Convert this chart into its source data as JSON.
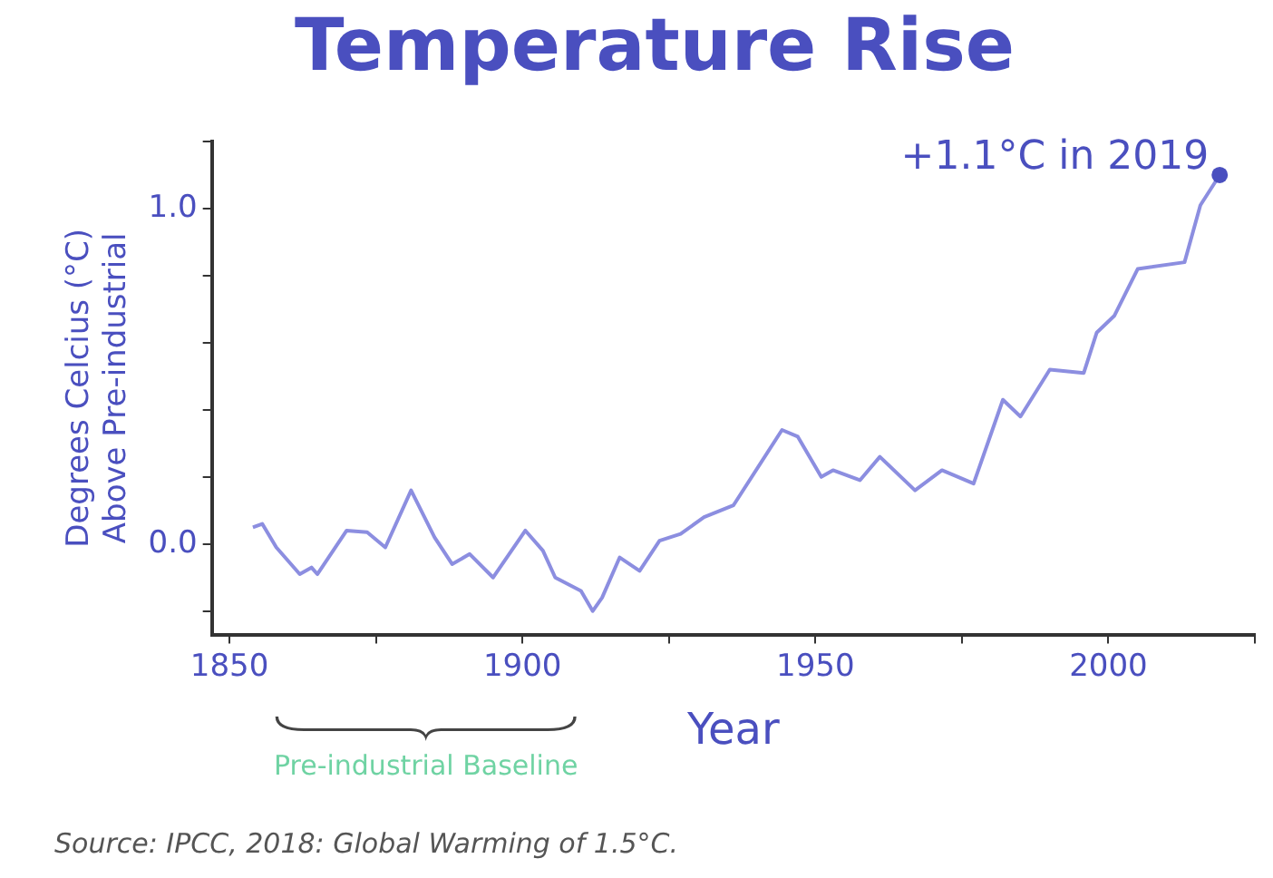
{
  "chart_data": {
    "type": "line",
    "title": "Temperature Rise",
    "xlabel": "Year",
    "ylabel": "Degrees Celcius (°C)\nAbove Pre-industrial",
    "x": [
      1854,
      1855.6,
      1858,
      1862,
      1864,
      1865,
      1870,
      1873.5,
      1876.6,
      1881,
      1885,
      1888,
      1891,
      1895,
      1900.5,
      1903.5,
      1905.6,
      1910,
      1912,
      1913.6,
      1916.6,
      1920,
      1923.4,
      1927,
      1931,
      1936,
      1944.3,
      1947,
      1951,
      1953,
      1957.6,
      1961,
      1967,
      1971.6,
      1977,
      1982,
      1985,
      1990,
      1995.8,
      1998,
      2001,
      2005,
      2013,
      2015.7,
      2019
    ],
    "series": [
      {
        "color": "#8c8ee0",
        "values": [
          0.05,
          0.06,
          -0.01,
          -0.09,
          -0.07,
          -0.09,
          0.04,
          0.035,
          -0.01,
          0.16,
          0.02,
          -0.06,
          -0.03,
          -0.1,
          0.04,
          -0.02,
          -0.1,
          -0.14,
          -0.2,
          -0.16,
          -0.04,
          -0.08,
          0.01,
          0.03,
          0.08,
          0.115,
          0.34,
          0.32,
          0.2,
          0.22,
          0.19,
          0.26,
          0.16,
          0.22,
          0.18,
          0.43,
          0.38,
          0.52,
          0.51,
          0.63,
          0.68,
          0.82,
          0.84,
          1.01,
          1.1
        ]
      }
    ],
    "xlim": [
      1847,
      2025
    ],
    "xticks": [
      1850,
      {
        "value": 1875,
        "label": null
      },
      1900,
      {
        "value": 1925,
        "label": null
      },
      1950,
      {
        "value": 1975,
        "label": null
      },
      2000,
      {
        "value": 2025,
        "label": null
      }
    ],
    "ylim": [
      -0.27,
      1.2
    ],
    "yticks": [
      {
        "value": -0.2,
        "label": null
      },
      {
        "value": 0,
        "label": "0.0"
      },
      {
        "value": 0.2,
        "label": null
      },
      {
        "value": 0.4,
        "label": null
      },
      {
        "value": 0.6,
        "label": null
      },
      {
        "value": 0.8,
        "label": null
      },
      {
        "value": 1,
        "label": "1.0"
      },
      {
        "value": 1.2,
        "label": null
      }
    ],
    "annotations": [
      {
        "text": "+1.1°C in 2019",
        "x": 2019,
        "y": 1.1
      },
      "Pre-industrial Baseline",
      "Source: IPCC, 2018: Global Warming of 1.5°C."
    ]
  }
}
